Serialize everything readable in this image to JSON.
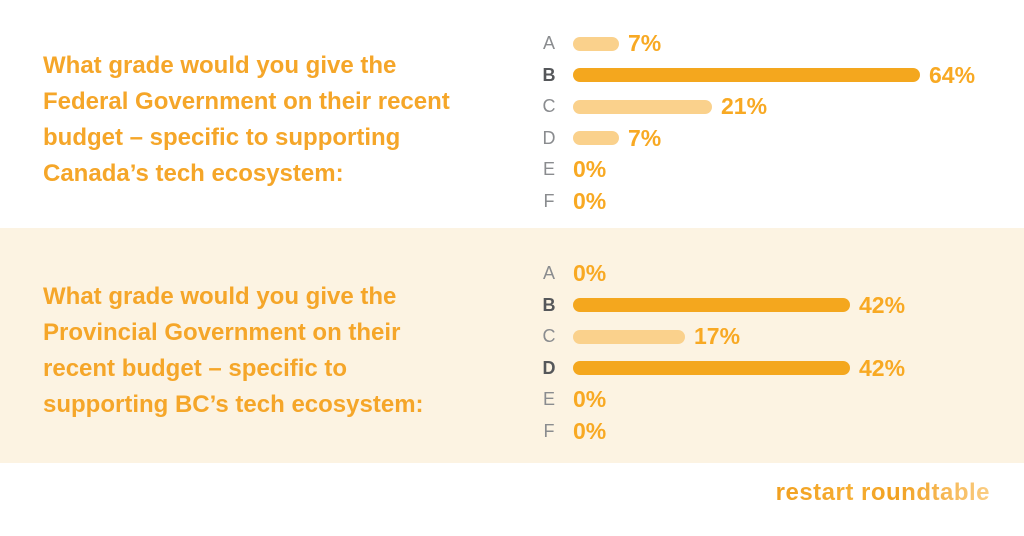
{
  "colors": {
    "accent_orange": "#F5A629",
    "percent_orange": "#F8A923",
    "bar_dark": "#F4A71E",
    "bar_light": "#FAD18C",
    "grade_gray": "#8A8C8F",
    "grade_dark": "#55575A",
    "band_cream": "#FCF3E2",
    "page_white": "#FFFFFF"
  },
  "questions": [
    {
      "full_text": "What grade would you give the Federal Government on their recent budget – specific to supporting Canada’s tech ecosystem:",
      "lines": [
        "What grade would you give the",
        "Federal Government on their recent",
        "budget – specific to supporting",
        "Canada’s tech ecosystem:"
      ]
    },
    {
      "full_text": "What grade would you give the Provincial Government on their recent budget – specific to supporting BC’s tech ecosystem:",
      "lines": [
        "What grade would you give the",
        "Provincial Government on their",
        "recent budget – specific to",
        "supporting BC’s tech ecosystem:"
      ]
    }
  ],
  "logo": {
    "text": "restart roundtable"
  },
  "chart_data": [
    {
      "type": "bar",
      "orientation": "horizontal",
      "title": "What grade would you give the Federal Government on their recent budget – specific to supporting Canada’s tech ecosystem:",
      "categories": [
        "A",
        "B",
        "C",
        "D",
        "E",
        "F"
      ],
      "values": [
        7,
        64,
        21,
        7,
        0,
        0
      ],
      "value_labels": [
        "7%",
        "64%",
        "21%",
        "7%",
        "0%",
        "0%"
      ],
      "unit": "%",
      "xlim": [
        0,
        100
      ],
      "value_axis_visible": false,
      "grid": false,
      "legend": false,
      "highlight_rule": "max value rows use dark orange bar and bold grade letter"
    },
    {
      "type": "bar",
      "orientation": "horizontal",
      "title": "What grade would you give the Provincial Government on their recent budget – specific to supporting BC’s tech ecosystem:",
      "categories": [
        "A",
        "B",
        "C",
        "D",
        "E",
        "F"
      ],
      "values": [
        0,
        42,
        17,
        42,
        0,
        0
      ],
      "value_labels": [
        "0%",
        "42%",
        "17%",
        "42%",
        "0%",
        "0%"
      ],
      "unit": "%",
      "xlim": [
        0,
        100
      ],
      "value_axis_visible": false,
      "grid": false,
      "legend": false,
      "highlight_rule": "max value rows use dark orange bar and bold grade letter"
    }
  ]
}
